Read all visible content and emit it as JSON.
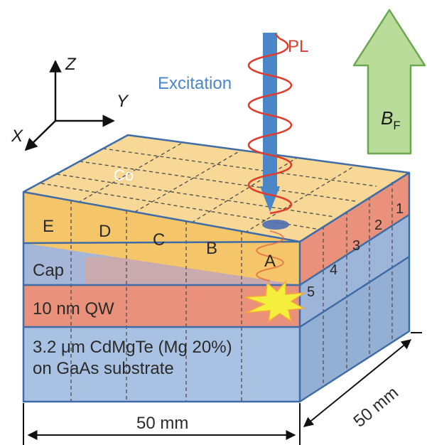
{
  "axes": {
    "z": "Z",
    "y": "Y",
    "x": "X"
  },
  "beam": {
    "excitation_label": "Excitation",
    "pl_label": "PL"
  },
  "field": {
    "symbol": "B",
    "subscript": "F"
  },
  "layers": {
    "co": "Co",
    "cap": "Cap",
    "qw": "10 nm QW",
    "substrate_line1": "3.2 μm CdMgTe (Mg 20%)",
    "substrate_line2": "on GaAs substrate"
  },
  "front_regions": [
    "E",
    "D",
    "C",
    "B",
    "A"
  ],
  "side_regions": [
    "1",
    "2",
    "3",
    "4",
    "5"
  ],
  "dimensions": {
    "width": "50 mm",
    "depth": "50 mm"
  },
  "colors": {
    "co_top": "#F7D896",
    "co_front": "#F5C56A",
    "cap": "#A5B6D8",
    "qw": "#E9917A",
    "substrate": "#A9C2E3",
    "outline": "#3F6CA6",
    "beam": "#4A86C8",
    "pl_wave": "#E03C2C",
    "field_arrow_fill": "#B9DC9B",
    "field_arrow_stroke": "#6AA84F",
    "flash": "#F4EE3C"
  }
}
